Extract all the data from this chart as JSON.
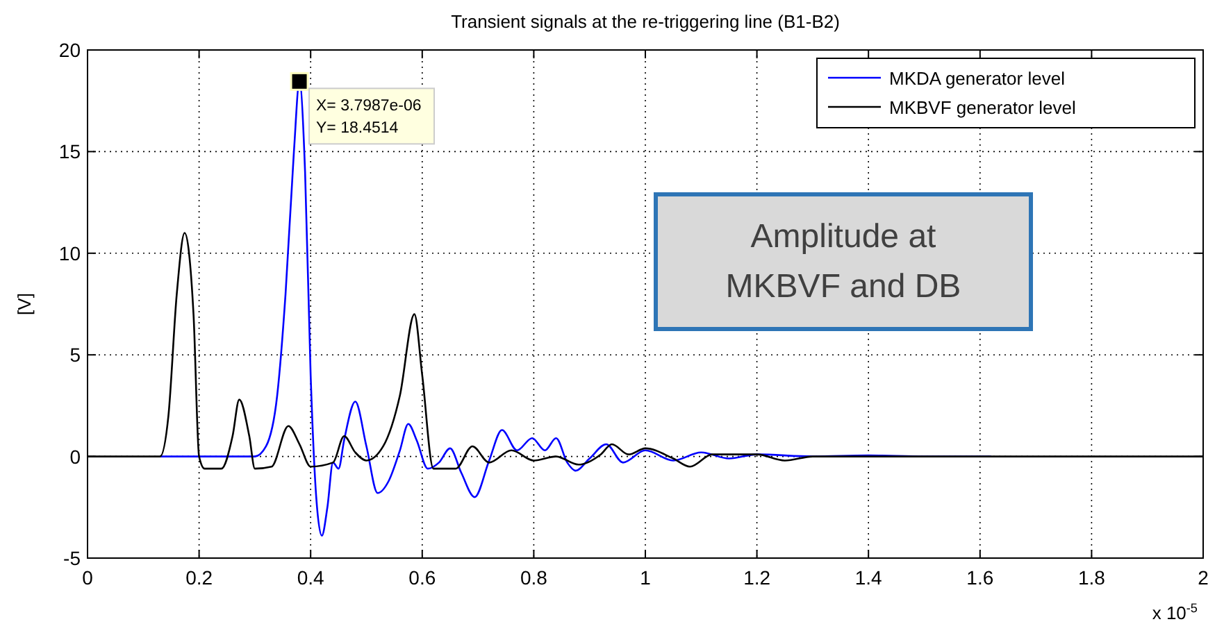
{
  "chart_data": {
    "type": "line",
    "title": "Transient signals at the re-triggering line (B1-B2)",
    "ylabel": "[V]",
    "xlim": [
      0,
      2
    ],
    "xticks": [
      0,
      0.2,
      0.4,
      0.6,
      0.8,
      1,
      1.2,
      1.4,
      1.6,
      1.8,
      2
    ],
    "ylim": [
      -5,
      20
    ],
    "yticks": [
      -5,
      0,
      5,
      10,
      15,
      20
    ],
    "grid": true,
    "legend": "top right",
    "line_style": "solid",
    "series": [
      {
        "name": "MKDA generator level",
        "color": "#0000ff",
        "x": [
          0.13,
          0.3,
          0.32,
          0.34,
          0.355,
          0.37,
          0.3799,
          0.39,
          0.4,
          0.41,
          0.42,
          0.43,
          0.44,
          0.45,
          0.46,
          0.48,
          0.5,
          0.52,
          0.54,
          0.56,
          0.575,
          0.59,
          0.61,
          0.63,
          0.65,
          0.67,
          0.694,
          0.72,
          0.743,
          0.77,
          0.797,
          0.82,
          0.84,
          0.86,
          0.875,
          0.9,
          0.93,
          0.96,
          1.0,
          1.05,
          1.1,
          1.15,
          1.2,
          1.3,
          1.4,
          1.5,
          1.62
        ],
        "values": [
          0,
          0,
          0.5,
          3,
          8,
          15,
          18.45,
          14,
          4,
          -2,
          -3.9,
          -2.5,
          -0.3,
          -0.6,
          0.8,
          2.7,
          0.5,
          -1.8,
          -1.2,
          0.3,
          1.6,
          0.8,
          -0.6,
          -0.3,
          0.4,
          -0.8,
          -2.0,
          -0.2,
          1.3,
          0.3,
          0.9,
          0.3,
          0.9,
          -0.3,
          -0.7,
          -0.1,
          0.6,
          -0.3,
          0.3,
          -0.2,
          0.2,
          -0.1,
          0.1,
          0,
          0.05,
          0,
          0
        ]
      },
      {
        "name": "MKBVF generator level",
        "color": "#000000",
        "x": [
          0,
          0.13,
          0.145,
          0.16,
          0.174,
          0.19,
          0.2,
          0.21,
          0.24,
          0.26,
          0.272,
          0.29,
          0.3,
          0.33,
          0.36,
          0.38,
          0.4,
          0.44,
          0.46,
          0.48,
          0.5,
          0.53,
          0.56,
          0.586,
          0.6,
          0.62,
          0.66,
          0.69,
          0.72,
          0.76,
          0.8,
          0.84,
          0.88,
          0.92,
          0.94,
          0.97,
          1.0,
          1.05,
          1.08,
          1.12,
          1.2,
          1.25,
          1.3,
          2.0
        ],
        "values": [
          0,
          0,
          2,
          8,
          11,
          7,
          0,
          -0.6,
          -0.6,
          1,
          2.8,
          1,
          -0.6,
          -0.5,
          1.5,
          0.6,
          -0.5,
          -0.3,
          1.0,
          0.2,
          -0.2,
          0.5,
          3,
          7,
          4,
          -0.6,
          -0.6,
          0.5,
          -0.3,
          0.3,
          -0.2,
          0,
          -0.4,
          0.1,
          0.6,
          0.1,
          0.4,
          -0.1,
          -0.5,
          0.1,
          0.1,
          -0.2,
          0,
          0
        ]
      }
    ],
    "annotations": [
      {
        "text": "X= 3.7987e-06\nY= 18.4514",
        "x": 0.37987,
        "y": 18.4514
      },
      "x 10$^{-5}$",
      "Amplitude at\nMKBVF and DB"
    ]
  }
}
